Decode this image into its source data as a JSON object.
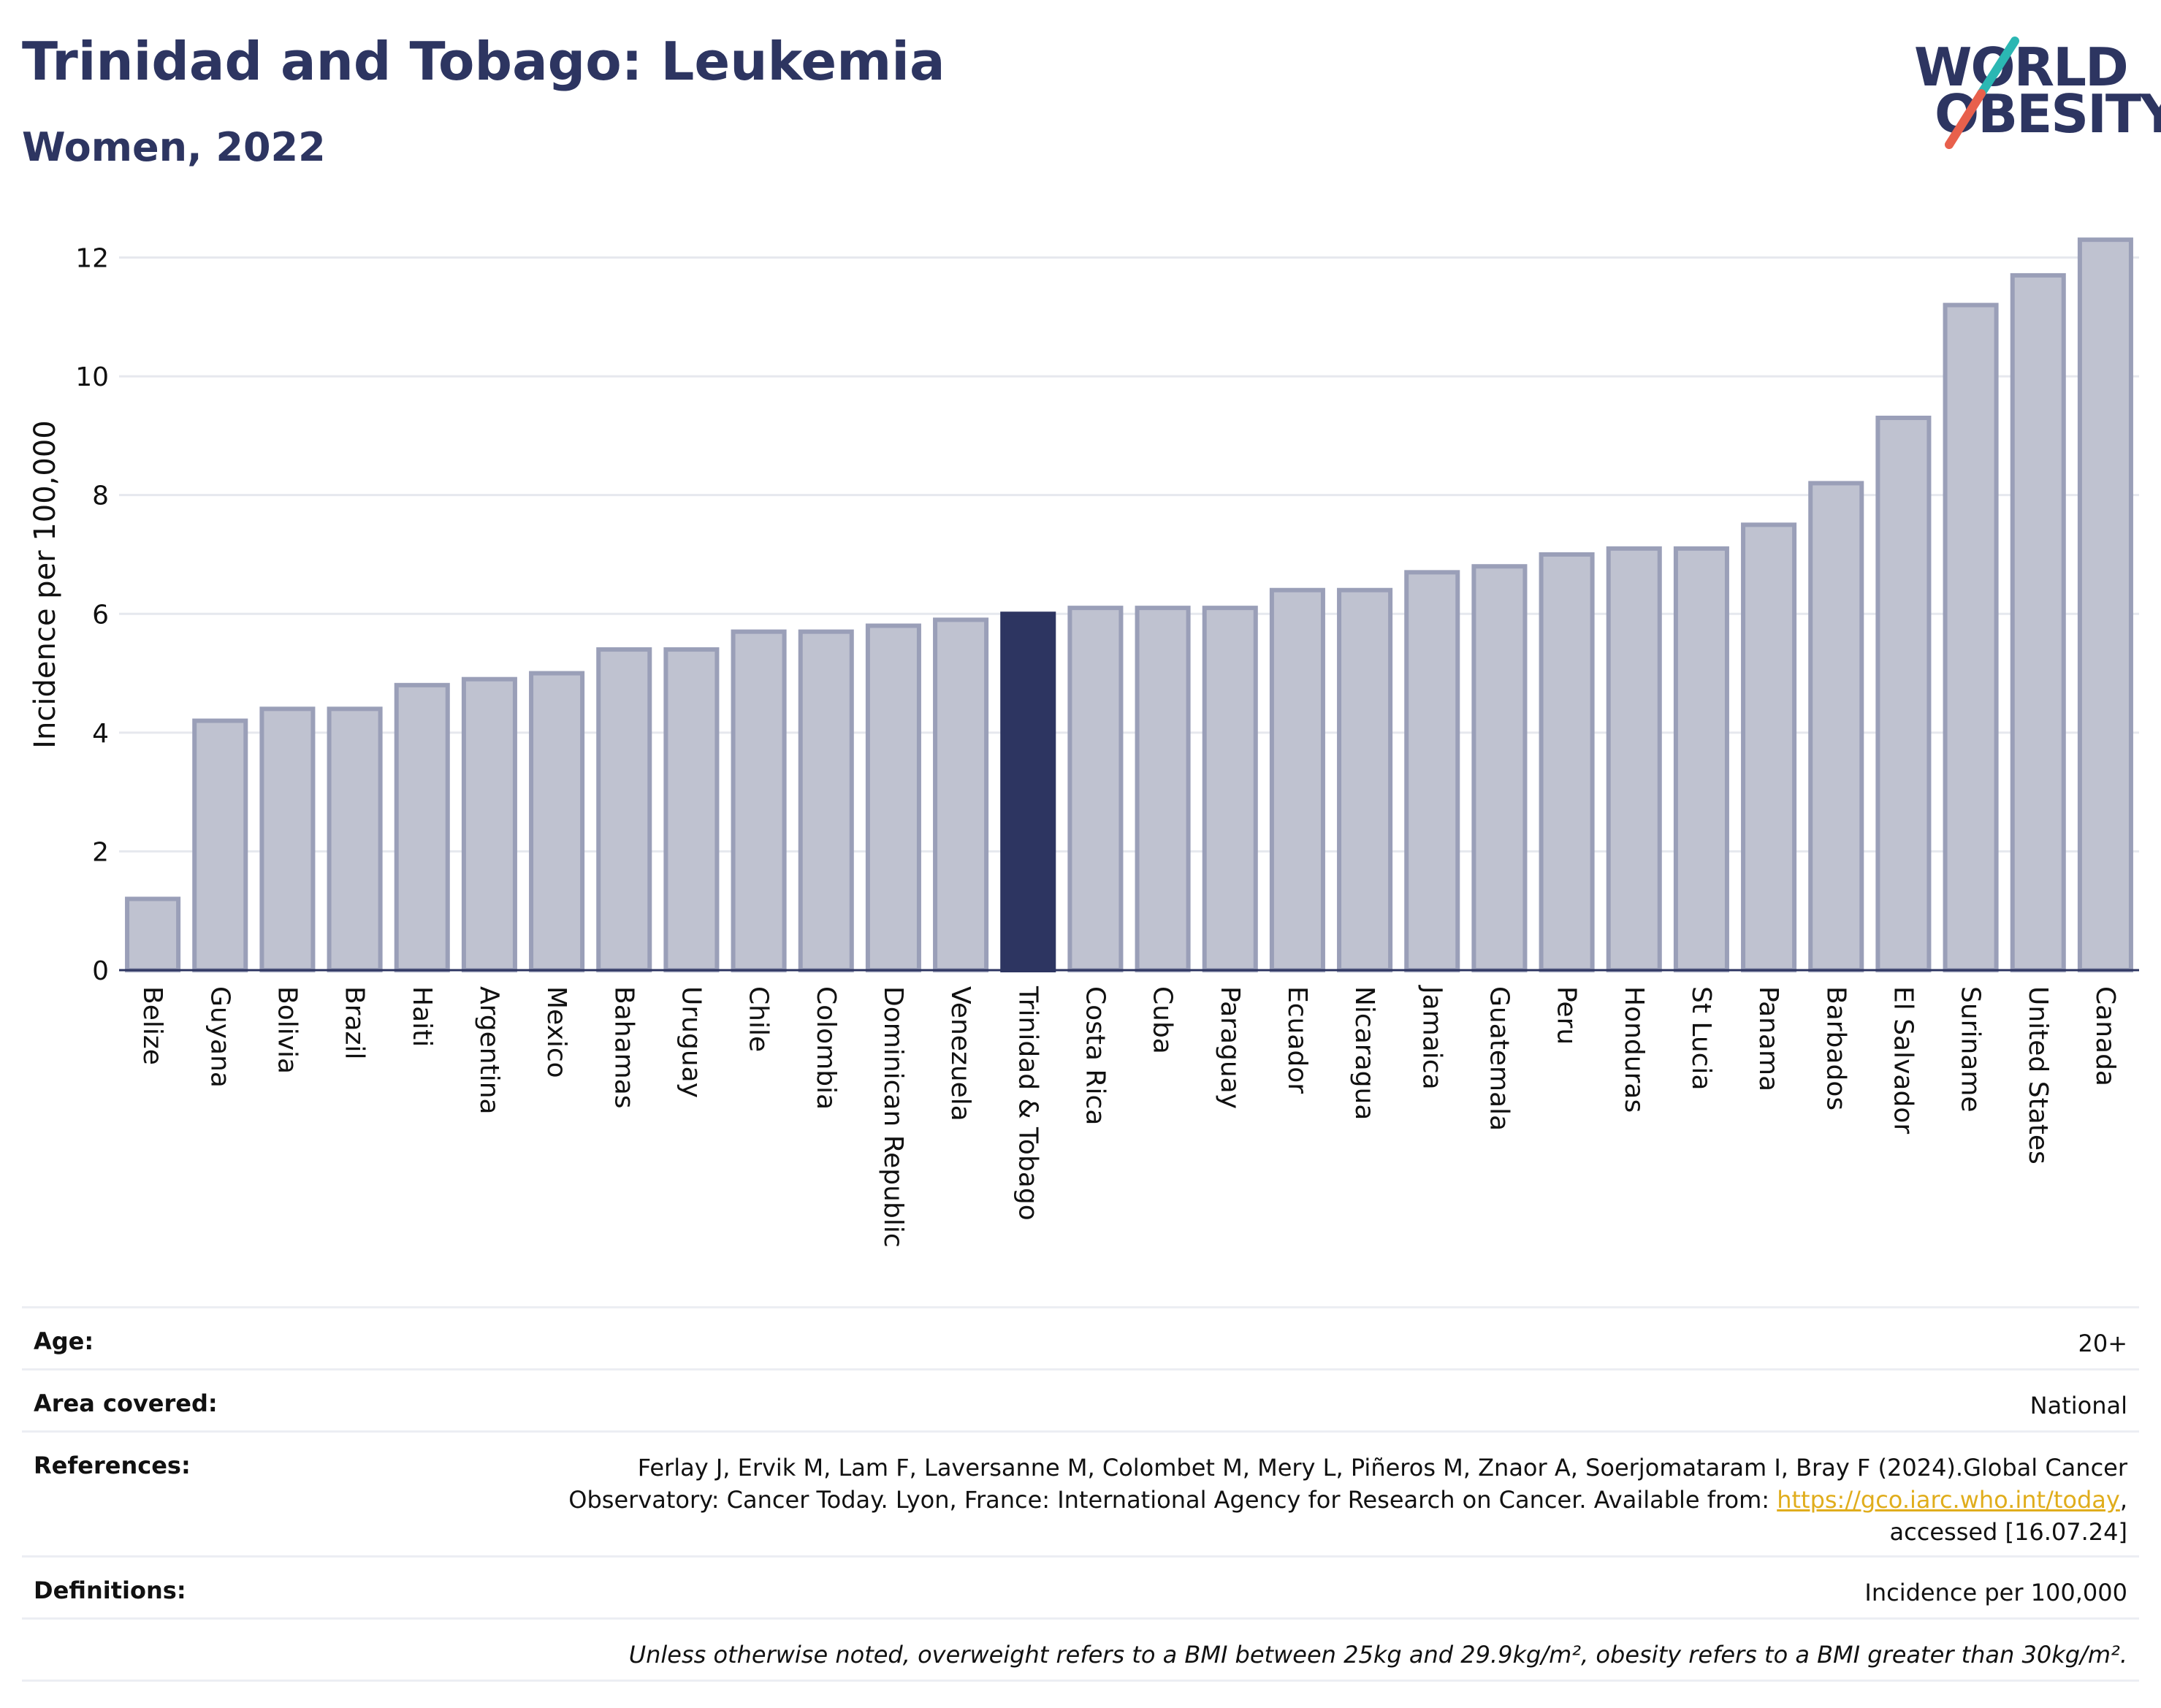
{
  "header": {
    "title": "Trinidad and Tobago: Leukemia",
    "subtitle": "Women, 2022"
  },
  "logo": {
    "line1": "WORLD",
    "line2": "OBESITY",
    "colors": {
      "text": "#2d3561",
      "slash_top": "#2bb7b3",
      "slash_bottom": "#e8604c"
    }
  },
  "chart_data": {
    "type": "bar",
    "ylabel": "Incidence per 100,000",
    "ylim": [
      0,
      12.4
    ],
    "yticks": [
      0,
      2,
      4,
      6,
      8,
      10,
      12
    ],
    "grid": true,
    "highlight": "Trinidad & Tobago",
    "colors": {
      "bar": "#bfc2d0",
      "bar_stroke": "#9a9fb8",
      "highlight": "#2d3561",
      "grid": "#e6e8ee"
    },
    "categories": [
      "Belize",
      "Guyana",
      "Bolivia",
      "Brazil",
      "Haiti",
      "Argentina",
      "Mexico",
      "Bahamas",
      "Uruguay",
      "Chile",
      "Colombia",
      "Dominican Republic",
      "Venezuela",
      "Trinidad & Tobago",
      "Costa Rica",
      "Cuba",
      "Paraguay",
      "Ecuador",
      "Nicaragua",
      "Jamaica",
      "Guatemala",
      "Peru",
      "Honduras",
      "St Lucia",
      "Panama",
      "Barbados",
      "El Salvador",
      "Suriname",
      "United States",
      "Canada"
    ],
    "values": [
      1.2,
      4.2,
      4.4,
      4.4,
      4.8,
      4.9,
      5.0,
      5.4,
      5.4,
      5.7,
      5.7,
      5.8,
      5.9,
      6.0,
      6.1,
      6.1,
      6.1,
      6.4,
      6.4,
      6.7,
      6.8,
      7.0,
      7.1,
      7.1,
      7.5,
      8.2,
      9.3,
      11.2,
      11.7,
      12.3
    ]
  },
  "info": {
    "age_label": "Age:",
    "age_value": "20+",
    "area_label": "Area covered:",
    "area_value": "National",
    "references_label": "References:",
    "references_line1": "Ferlay J, Ervik M, Lam F, Laversanne M, Colombet M, Mery L, Piñeros M, Znaor A, Soerjomataram I, Bray F (2024).Global Cancer",
    "references_line2_pre": "Observatory: Cancer Today. Lyon, France: International Agency for Research on Cancer. Available from: ",
    "references_link": "https://gco.iarc.who.int/today",
    "references_line2_post": ",",
    "references_line3": "accessed [16.07.24]",
    "definitions_label": "Definitions:",
    "definitions_value": "Incidence per 100,000",
    "note": "Unless otherwise noted, overweight refers to a BMI between 25kg and 29.9kg/m², obesity refers to a BMI greater than 30kg/m²."
  }
}
